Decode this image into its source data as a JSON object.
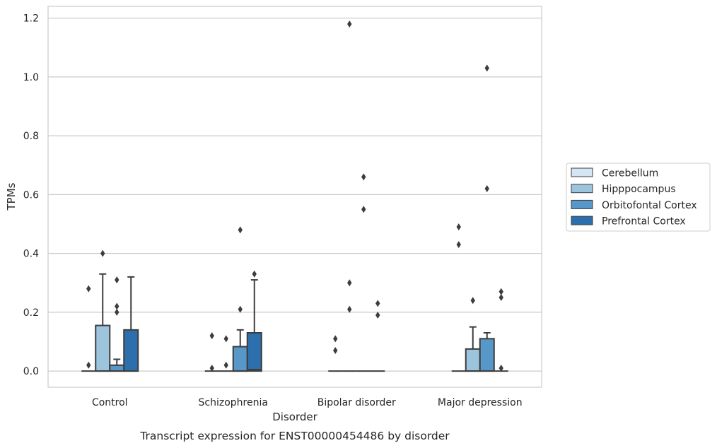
{
  "chart_data": {
    "type": "box",
    "title": "Transcript expression for ENST00000454486 by disorder",
    "xlabel": "Disorder",
    "ylabel": "TPMs",
    "ylim": [
      -0.055,
      1.24
    ],
    "yticks": [
      "0.0",
      "0.2",
      "0.4",
      "0.6",
      "0.8",
      "1.0",
      "1.2"
    ],
    "grid": true,
    "legend_position": "right-outside",
    "categories": [
      "Control",
      "Schizophrenia",
      "Bipolar disorder",
      "Major depression"
    ],
    "series": [
      {
        "name": "Cerebellum",
        "color": "#d6e5f3",
        "boxes": [
          {
            "q1": 0.0,
            "median": 0.0,
            "q3": 0.0,
            "whislo": 0.0,
            "whishi": 0.0,
            "fliers": [
              0.02,
              0.28
            ]
          },
          {
            "q1": 0.0,
            "median": 0.0,
            "q3": 0.0,
            "whislo": 0.0,
            "whishi": 0.0,
            "fliers": [
              0.01,
              0.12
            ]
          },
          {
            "q1": 0.0,
            "median": 0.0,
            "q3": 0.0,
            "whislo": 0.0,
            "whishi": 0.0,
            "fliers": [
              0.07,
              0.11
            ]
          },
          {
            "q1": 0.0,
            "median": 0.0,
            "q3": 0.0,
            "whislo": 0.0,
            "whishi": 0.0,
            "fliers": [
              0.43,
              0.49
            ]
          }
        ]
      },
      {
        "name": "Hipppocampus",
        "color": "#9cc4dd",
        "boxes": [
          {
            "q1": 0.0,
            "median": 0.0,
            "q3": 0.155,
            "whislo": 0.0,
            "whishi": 0.33,
            "fliers": [
              0.4
            ]
          },
          {
            "q1": 0.0,
            "median": 0.0,
            "q3": 0.0,
            "whislo": 0.0,
            "whishi": 0.0,
            "fliers": [
              0.02,
              0.11
            ]
          },
          {
            "q1": 0.0,
            "median": 0.0,
            "q3": 0.0,
            "whislo": 0.0,
            "whishi": 0.0,
            "fliers": [
              0.21,
              0.3,
              1.18
            ]
          },
          {
            "q1": 0.0,
            "median": 0.0,
            "q3": 0.075,
            "whislo": 0.0,
            "whishi": 0.15,
            "fliers": [
              0.24
            ]
          }
        ]
      },
      {
        "name": "Orbitofontal Cortex",
        "color": "#5798c8",
        "boxes": [
          {
            "q1": 0.0,
            "median": 0.0,
            "q3": 0.02,
            "whislo": 0.0,
            "whishi": 0.04,
            "fliers": [
              0.2,
              0.22,
              0.31
            ]
          },
          {
            "q1": 0.0,
            "median": 0.0,
            "q3": 0.083,
            "whislo": 0.0,
            "whishi": 0.14,
            "fliers": [
              0.21,
              0.48
            ]
          },
          {
            "q1": 0.0,
            "median": 0.0,
            "q3": 0.0,
            "whislo": 0.0,
            "whishi": 0.0,
            "fliers": [
              0.55,
              0.66
            ]
          },
          {
            "q1": 0.0,
            "median": 0.0,
            "q3": 0.11,
            "whislo": 0.0,
            "whishi": 0.13,
            "fliers": [
              0.62,
              1.03
            ]
          }
        ]
      },
      {
        "name": "Prefrontal Cortex",
        "color": "#2d6ead",
        "boxes": [
          {
            "q1": 0.0,
            "median": 0.0,
            "q3": 0.14,
            "whislo": 0.0,
            "whishi": 0.32,
            "fliers": []
          },
          {
            "q1": 0.0,
            "median": 0.005,
            "q3": 0.13,
            "whislo": 0.0,
            "whishi": 0.31,
            "fliers": [
              0.33
            ]
          },
          {
            "q1": 0.0,
            "median": 0.0,
            "q3": 0.0,
            "whislo": 0.0,
            "whishi": 0.0,
            "fliers": [
              0.19,
              0.23
            ]
          },
          {
            "q1": 0.0,
            "median": 0.0,
            "q3": 0.0,
            "whislo": 0.0,
            "whishi": 0.0,
            "fliers": [
              0.01,
              0.25,
              0.27
            ]
          }
        ]
      }
    ]
  }
}
